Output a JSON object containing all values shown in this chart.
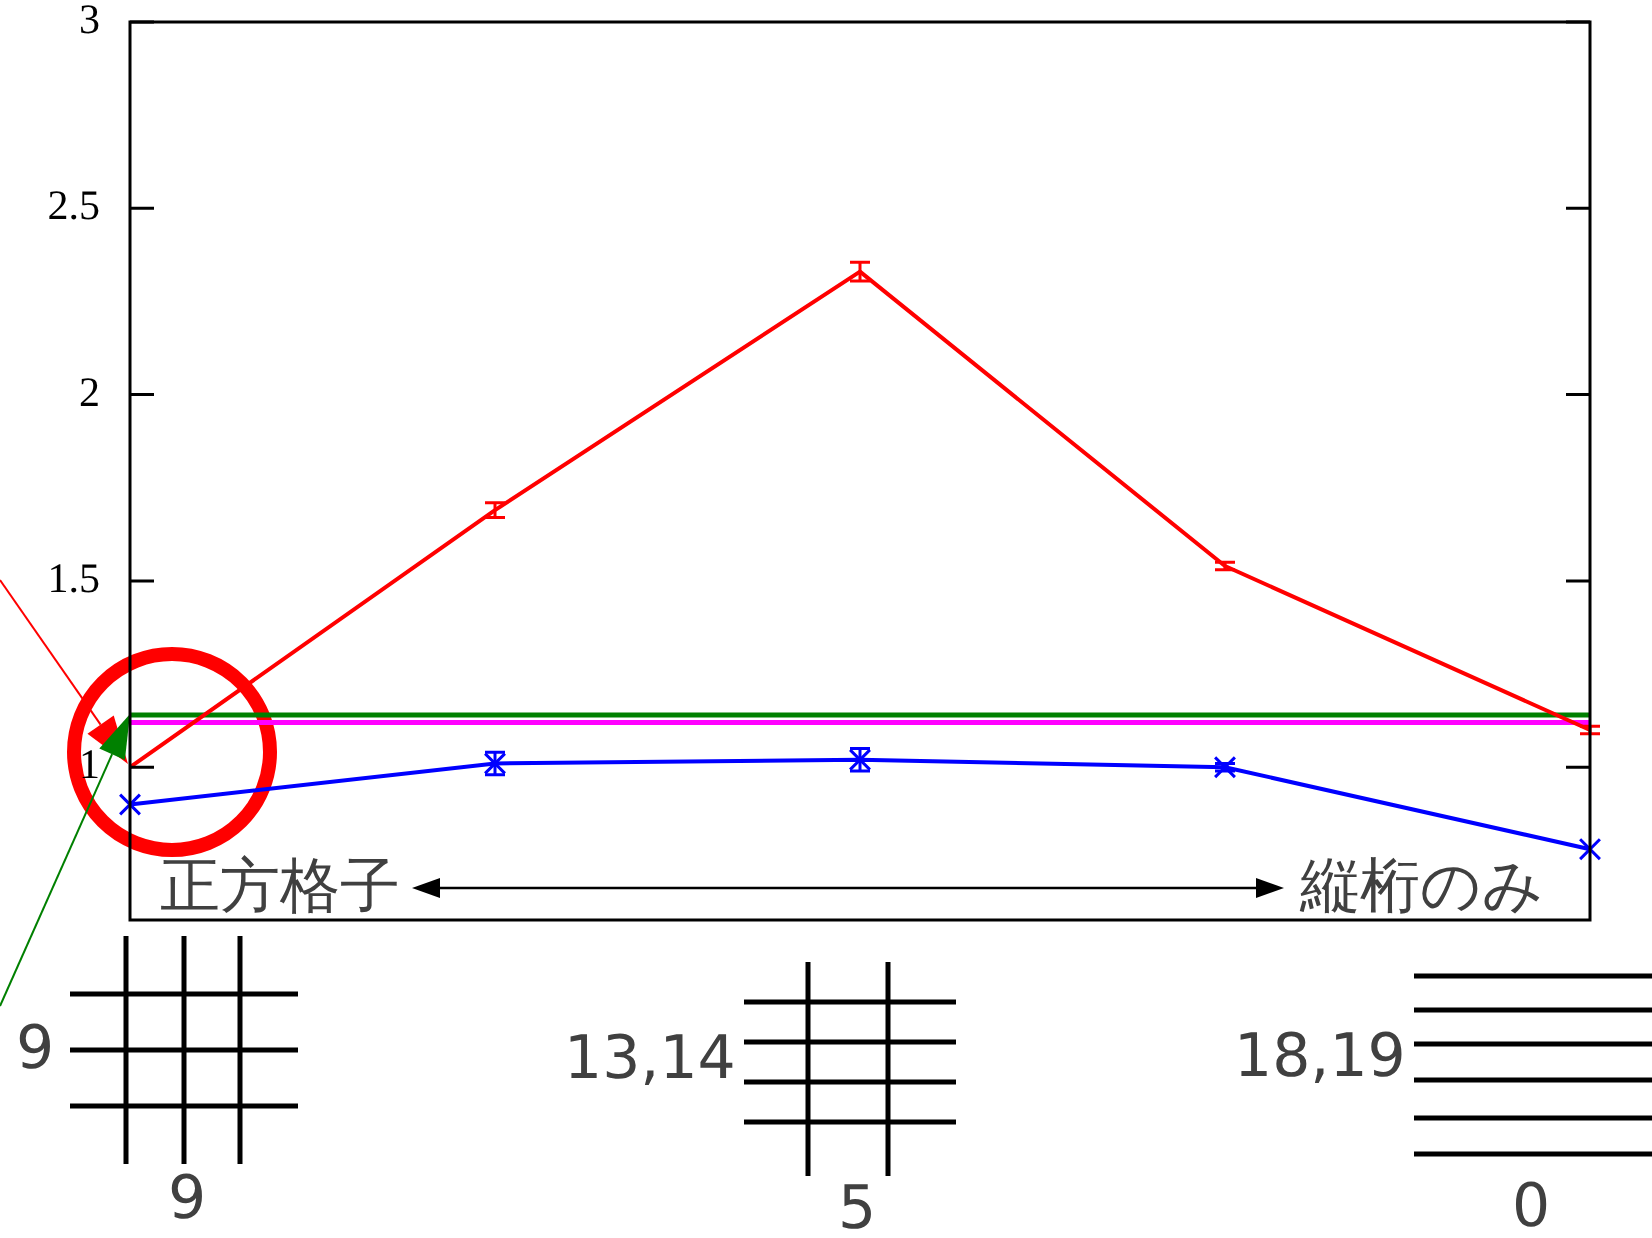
{
  "chart_data": {
    "type": "line",
    "categories": [
      null,
      null,
      null,
      null,
      null
    ],
    "series": [
      {
        "color": "#ff0000",
        "marker": "none",
        "values": [
          1.0,
          1.69,
          2.33,
          1.54,
          1.1
        ],
        "errors": [
          null,
          0.02,
          0.025,
          0.01,
          0.01
        ]
      },
      {
        "color": "#0000ff",
        "marker": "cross",
        "values": [
          0.9,
          1.01,
          1.02,
          1.0,
          0.78
        ],
        "errors": [
          null,
          0.03,
          0.03,
          0.01,
          null
        ]
      }
    ],
    "ylim": [
      0.59,
      3
    ],
    "yticks": [
      1,
      1.5,
      2,
      2.5,
      3
    ],
    "tick_labels": "y",
    "grid": false,
    "ref_lines": [
      {
        "axis": "y",
        "value": 1.14,
        "color": "#008000"
      },
      {
        "axis": "y",
        "value": 1.12,
        "color": "#ff00ff"
      }
    ],
    "annotations": [
      "正方格子",
      "縦桁のみ",
      "9",
      "9",
      "13,14",
      "5",
      "18,19",
      "0"
    ]
  }
}
